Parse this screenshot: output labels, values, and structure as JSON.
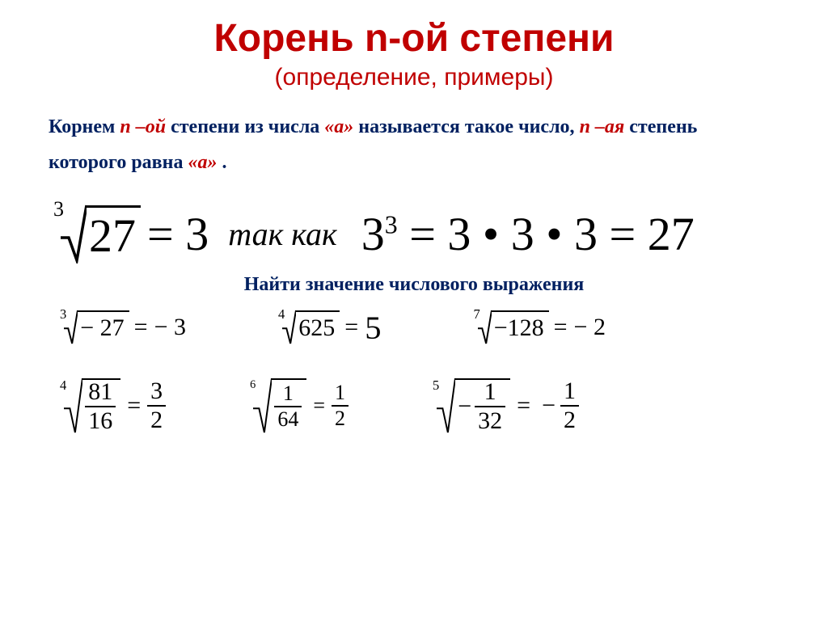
{
  "title": {
    "text": "Корень n-ой степени",
    "color": "#c00000",
    "fontsize": 48
  },
  "subtitle": {
    "text": "(определение, примеры)",
    "color": "#c00000",
    "fontsize": 30
  },
  "definition": {
    "prefix": "Корнем ",
    "n_term": "n –ой",
    "mid1": " степени из числа ",
    "a1": "«а»",
    "mid2": " называется такое число, ",
    "n2": "n –ая",
    "mid3": " степень которого равна  ",
    "a2": "«а»",
    "tail": ".",
    "text_color": "#002060",
    "accent_color": "#c00000",
    "fontsize": 24
  },
  "main_equation": {
    "root_degree": "3",
    "radicand": "27",
    "equals": "= 3",
    "link_text": "так   как",
    "rhs_base": "3",
    "rhs_exp": "3",
    "rhs_expand": "= 3 • 3 • 3 = 27",
    "fontsize_left": 58,
    "fontsize_link": 40,
    "link_color": "#000000",
    "link_style": "italic"
  },
  "subheading": {
    "text": "Найти значение числового выражения",
    "color": "#002060",
    "fontsize": 24
  },
  "examples_row1": [
    {
      "degree": "3",
      "radicand": "− 27",
      "result": "− 3",
      "scale": 30
    },
    {
      "degree": "4",
      "radicand": "625",
      "result": "5",
      "scale": 30,
      "result_larger": true
    },
    {
      "degree": "7",
      "radicand": "−128",
      "result": "− 2",
      "scale": 30
    }
  ],
  "examples_row2": [
    {
      "degree": "4",
      "frac_num": "81",
      "frac_den": "16",
      "res_num": "3",
      "res_den": "2",
      "neg": false,
      "scale": 30
    },
    {
      "degree": "6",
      "frac_num": "1",
      "frac_den": "64",
      "res_num": "1",
      "res_den": "2",
      "neg": false,
      "scale": 26
    },
    {
      "degree": "5",
      "frac_num": "1",
      "frac_den": "32",
      "res_num": "1",
      "res_den": "2",
      "neg": true,
      "scale": 30
    }
  ],
  "colors": {
    "background": "#ffffff",
    "text": "#000000"
  }
}
